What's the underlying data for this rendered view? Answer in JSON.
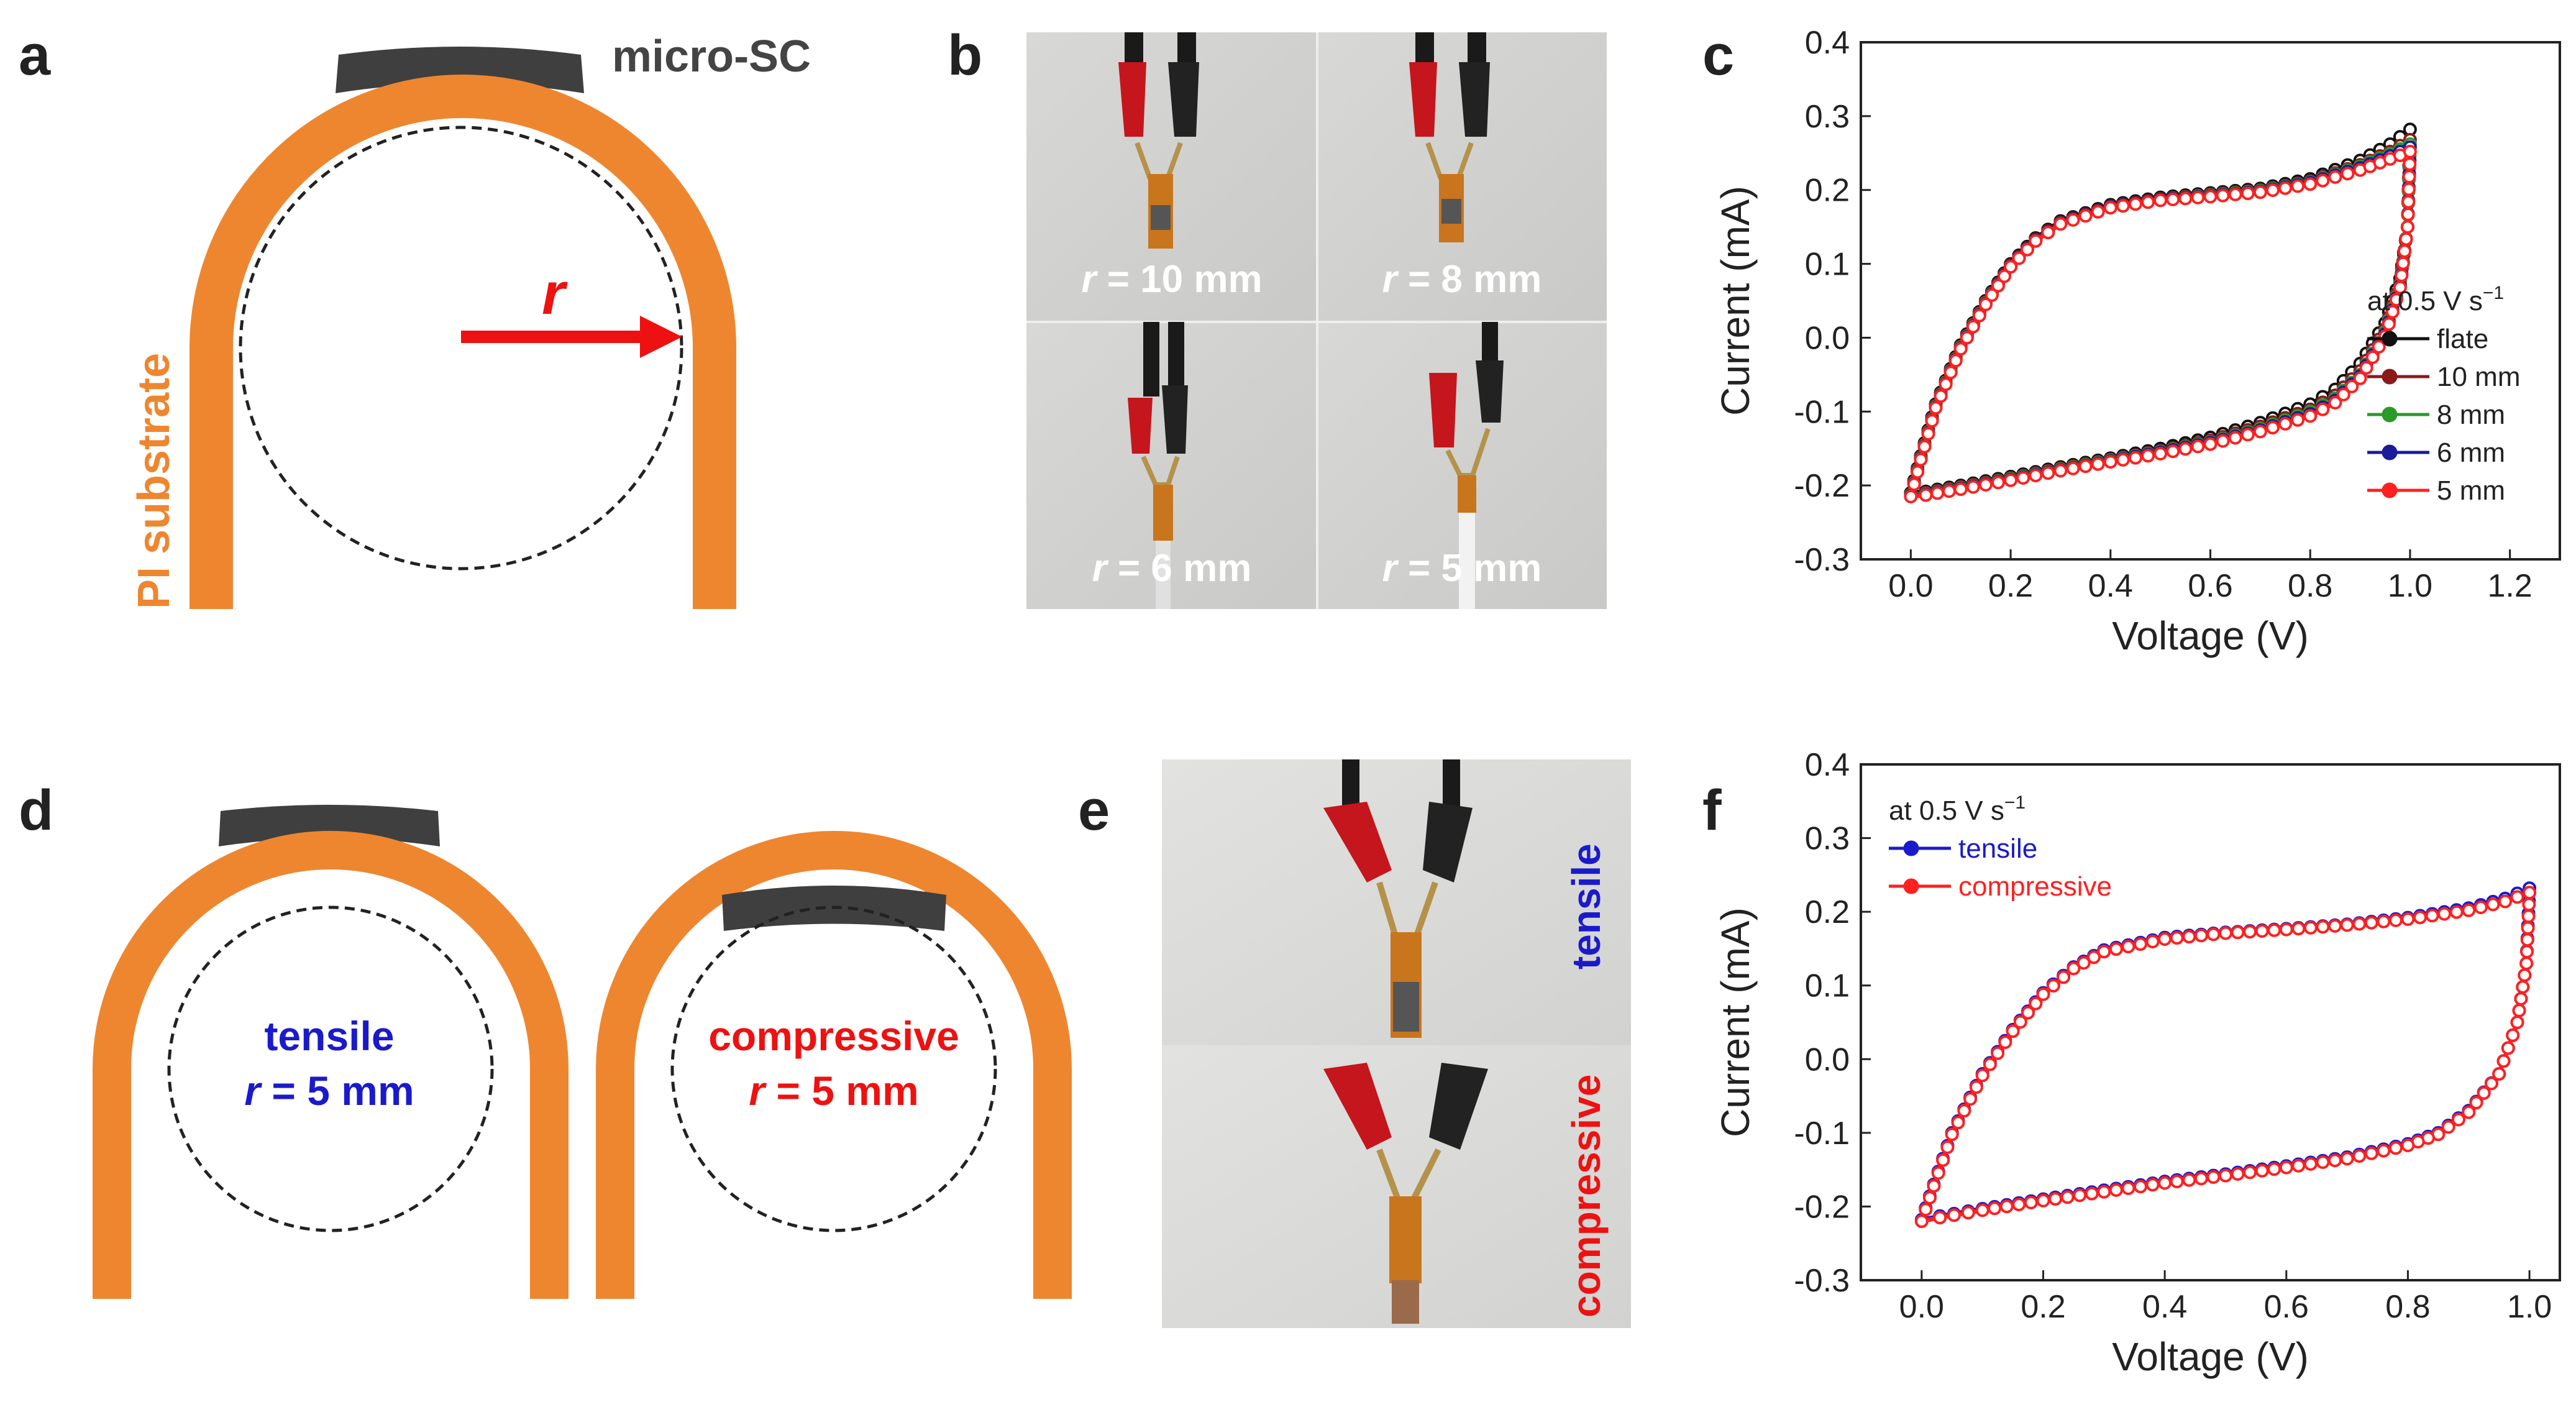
{
  "panels": {
    "a": {
      "label": "a",
      "device_label": "micro-SC",
      "substrate_label": "PI substrate",
      "radius_symbol": "r"
    },
    "b": {
      "label": "b",
      "photos": [
        {
          "prefix": "r",
          "text": " = 10 mm"
        },
        {
          "prefix": "r",
          "text": " = 8 mm"
        },
        {
          "prefix": "r",
          "text": " = 6 mm"
        },
        {
          "prefix": "r",
          "text": " = 5 mm"
        }
      ]
    },
    "c": {
      "label": "c"
    },
    "d": {
      "label": "d",
      "tensile": {
        "mode": "tensile",
        "prefix": "r",
        "text": " = 5 mm"
      },
      "compressive": {
        "mode": "compressive",
        "prefix": "r",
        "text": " = 5 mm"
      }
    },
    "e": {
      "label": "e",
      "top_text": "tensile",
      "bottom_text": "compressive"
    },
    "f": {
      "label": "f"
    }
  },
  "colors": {
    "orange": "#ee8630",
    "device": "#3f3f3f",
    "arrow": "#ee1111",
    "tensile": "#1a1acc",
    "compressive": "#ee1111",
    "flate": "#111111",
    "r10": "#8b1a1a",
    "r8": "#2a9a2a",
    "r6": "#1a1a9a",
    "r5": "#ff2020"
  },
  "chart_data": [
    {
      "id": "c",
      "type": "line",
      "title": "",
      "xlabel": "Voltage (V)",
      "ylabel": "Current (mA)",
      "xlim": [
        -0.1,
        1.3
      ],
      "ylim": [
        -0.3,
        0.4
      ],
      "xticks": [
        0.0,
        0.2,
        0.4,
        0.6,
        0.8,
        1.0,
        1.2
      ],
      "yticks": [
        -0.3,
        -0.2,
        -0.1,
        0.0,
        0.1,
        0.2,
        0.3,
        0.4
      ],
      "xtick_labels": [
        "0.0",
        "0.2",
        "0.4",
        "0.6",
        "0.8",
        "1.0",
        "1.2"
      ],
      "ytick_labels": [
        "-0.3",
        "-0.2",
        "-0.1",
        "0.0",
        "0.1",
        "0.2",
        "0.3",
        "0.4"
      ],
      "legend_title": "at 0.5 V s",
      "legend_title_sup": "−1",
      "legend_position": "right",
      "series": [
        {
          "name": "flate",
          "color": "#111111",
          "upper": [
            [
              0,
              -0.21
            ],
            [
              0.02,
              -0.16
            ],
            [
              0.05,
              -0.09
            ],
            [
              0.1,
              -0.01
            ],
            [
              0.15,
              0.05
            ],
            [
              0.2,
              0.1
            ],
            [
              0.25,
              0.135
            ],
            [
              0.3,
              0.158
            ],
            [
              0.4,
              0.18
            ],
            [
              0.5,
              0.19
            ],
            [
              0.6,
              0.196
            ],
            [
              0.7,
              0.202
            ],
            [
              0.8,
              0.215
            ],
            [
              0.9,
              0.24
            ],
            [
              0.96,
              0.262
            ],
            [
              1.0,
              0.282
            ]
          ],
          "lower": [
            [
              1.0,
              0.282
            ],
            [
              0.995,
              0.15
            ],
            [
              0.98,
              0.08
            ],
            [
              0.95,
              0.02
            ],
            [
              0.9,
              -0.035
            ],
            [
              0.85,
              -0.07
            ],
            [
              0.8,
              -0.09
            ],
            [
              0.7,
              -0.115
            ],
            [
              0.6,
              -0.135
            ],
            [
              0.5,
              -0.15
            ],
            [
              0.4,
              -0.163
            ],
            [
              0.3,
              -0.175
            ],
            [
              0.2,
              -0.188
            ],
            [
              0.1,
              -0.2
            ],
            [
              0.03,
              -0.208
            ],
            [
              0,
              -0.21
            ]
          ]
        },
        {
          "name": "10 mm",
          "color": "#8b1a1a",
          "upper": [
            [
              0,
              -0.212
            ],
            [
              0.02,
              -0.162
            ],
            [
              0.05,
              -0.092
            ],
            [
              0.1,
              -0.012
            ],
            [
              0.15,
              0.048
            ],
            [
              0.2,
              0.098
            ],
            [
              0.25,
              0.133
            ],
            [
              0.3,
              0.156
            ],
            [
              0.4,
              0.178
            ],
            [
              0.5,
              0.188
            ],
            [
              0.6,
              0.194
            ],
            [
              0.7,
              0.2
            ],
            [
              0.8,
              0.212
            ],
            [
              0.9,
              0.234
            ],
            [
              0.96,
              0.252
            ],
            [
              1.0,
              0.268
            ]
          ],
          "lower": [
            [
              1.0,
              0.268
            ],
            [
              0.995,
              0.15
            ],
            [
              0.98,
              0.075
            ],
            [
              0.95,
              0.012
            ],
            [
              0.9,
              -0.045
            ],
            [
              0.85,
              -0.078
            ],
            [
              0.8,
              -0.097
            ],
            [
              0.7,
              -0.12
            ],
            [
              0.6,
              -0.139
            ],
            [
              0.5,
              -0.153
            ],
            [
              0.4,
              -0.165
            ],
            [
              0.3,
              -0.177
            ],
            [
              0.2,
              -0.19
            ],
            [
              0.1,
              -0.202
            ],
            [
              0.03,
              -0.21
            ],
            [
              0,
              -0.212
            ]
          ]
        },
        {
          "name": "8 mm",
          "color": "#2a9a2a",
          "upper": [
            [
              0,
              -0.213
            ],
            [
              0.02,
              -0.163
            ],
            [
              0.05,
              -0.093
            ],
            [
              0.1,
              -0.013
            ],
            [
              0.15,
              0.047
            ],
            [
              0.2,
              0.097
            ],
            [
              0.25,
              0.132
            ],
            [
              0.3,
              0.155
            ],
            [
              0.4,
              0.177
            ],
            [
              0.5,
              0.187
            ],
            [
              0.6,
              0.193
            ],
            [
              0.7,
              0.199
            ],
            [
              0.8,
              0.211
            ],
            [
              0.9,
              0.232
            ],
            [
              0.96,
              0.249
            ],
            [
              1.0,
              0.262
            ]
          ],
          "lower": [
            [
              1.0,
              0.262
            ],
            [
              0.995,
              0.15
            ],
            [
              0.98,
              0.072
            ],
            [
              0.95,
              0.008
            ],
            [
              0.9,
              -0.05
            ],
            [
              0.85,
              -0.082
            ],
            [
              0.8,
              -0.1
            ],
            [
              0.7,
              -0.123
            ],
            [
              0.6,
              -0.141
            ],
            [
              0.5,
              -0.154
            ],
            [
              0.4,
              -0.166
            ],
            [
              0.3,
              -0.178
            ],
            [
              0.2,
              -0.191
            ],
            [
              0.1,
              -0.203
            ],
            [
              0.03,
              -0.211
            ],
            [
              0,
              -0.213
            ]
          ]
        },
        {
          "name": "6 mm",
          "color": "#1a1a9a",
          "upper": [
            [
              0,
              -0.214
            ],
            [
              0.02,
              -0.164
            ],
            [
              0.05,
              -0.094
            ],
            [
              0.1,
              -0.014
            ],
            [
              0.15,
              0.046
            ],
            [
              0.2,
              0.097
            ],
            [
              0.25,
              0.132
            ],
            [
              0.3,
              0.155
            ],
            [
              0.4,
              0.177
            ],
            [
              0.5,
              0.187
            ],
            [
              0.6,
              0.192
            ],
            [
              0.7,
              0.198
            ],
            [
              0.8,
              0.21
            ],
            [
              0.9,
              0.23
            ],
            [
              0.96,
              0.246
            ],
            [
              1.0,
              0.258
            ]
          ],
          "lower": [
            [
              1.0,
              0.258
            ],
            [
              0.995,
              0.15
            ],
            [
              0.98,
              0.07
            ],
            [
              0.95,
              0.005
            ],
            [
              0.9,
              -0.052
            ],
            [
              0.85,
              -0.085
            ],
            [
              0.8,
              -0.103
            ],
            [
              0.7,
              -0.125
            ],
            [
              0.6,
              -0.142
            ],
            [
              0.5,
              -0.155
            ],
            [
              0.4,
              -0.167
            ],
            [
              0.3,
              -0.179
            ],
            [
              0.2,
              -0.192
            ],
            [
              0.1,
              -0.204
            ],
            [
              0.03,
              -0.212
            ],
            [
              0,
              -0.214
            ]
          ]
        },
        {
          "name": "5 mm",
          "color": "#ff2020",
          "upper": [
            [
              0,
              -0.215
            ],
            [
              0.02,
              -0.165
            ],
            [
              0.05,
              -0.095
            ],
            [
              0.1,
              -0.015
            ],
            [
              0.15,
              0.045
            ],
            [
              0.2,
              0.096
            ],
            [
              0.25,
              0.131
            ],
            [
              0.3,
              0.154
            ],
            [
              0.4,
              0.176
            ],
            [
              0.5,
              0.186
            ],
            [
              0.6,
              0.191
            ],
            [
              0.7,
              0.197
            ],
            [
              0.8,
              0.208
            ],
            [
              0.9,
              0.227
            ],
            [
              0.96,
              0.242
            ],
            [
              1.0,
              0.252
            ]
          ],
          "lower": [
            [
              1.0,
              0.252
            ],
            [
              0.995,
              0.15
            ],
            [
              0.98,
              0.068
            ],
            [
              0.95,
              0.002
            ],
            [
              0.9,
              -0.055
            ],
            [
              0.85,
              -0.088
            ],
            [
              0.8,
              -0.106
            ],
            [
              0.7,
              -0.127
            ],
            [
              0.6,
              -0.144
            ],
            [
              0.5,
              -0.157
            ],
            [
              0.4,
              -0.168
            ],
            [
              0.3,
              -0.18
            ],
            [
              0.2,
              -0.193
            ],
            [
              0.1,
              -0.205
            ],
            [
              0.03,
              -0.213
            ],
            [
              0,
              -0.215
            ]
          ]
        }
      ]
    },
    {
      "id": "f",
      "type": "line",
      "title": "",
      "xlabel": "Voltage (V)",
      "ylabel": "Current (mA)",
      "xlim": [
        -0.1,
        1.05
      ],
      "ylim": [
        -0.3,
        0.4
      ],
      "xticks": [
        0.0,
        0.2,
        0.4,
        0.6,
        0.8,
        1.0
      ],
      "yticks": [
        -0.3,
        -0.2,
        -0.1,
        0.0,
        0.1,
        0.2,
        0.3,
        0.4
      ],
      "xtick_labels": [
        "0.0",
        "0.2",
        "0.4",
        "0.6",
        "0.8",
        "1.0"
      ],
      "ytick_labels": [
        "-0.3",
        "-0.2",
        "-0.1",
        "0.0",
        "0.1",
        "0.2",
        "0.3",
        "0.4"
      ],
      "legend_title": "at 0.5 V s",
      "legend_title_sup": "−1",
      "legend_position": "top-left",
      "series": [
        {
          "name": "tensile",
          "color": "#1a1acc",
          "upper": [
            [
              0,
              -0.218
            ],
            [
              0.02,
              -0.17
            ],
            [
              0.05,
              -0.1
            ],
            [
              0.1,
              -0.02
            ],
            [
              0.15,
              0.04
            ],
            [
              0.2,
              0.09
            ],
            [
              0.25,
              0.125
            ],
            [
              0.3,
              0.148
            ],
            [
              0.4,
              0.165
            ],
            [
              0.5,
              0.172
            ],
            [
              0.6,
              0.177
            ],
            [
              0.7,
              0.183
            ],
            [
              0.8,
              0.192
            ],
            [
              0.9,
              0.205
            ],
            [
              0.96,
              0.218
            ],
            [
              1.0,
              0.232
            ]
          ],
          "lower": [
            [
              1.0,
              0.232
            ],
            [
              0.995,
              0.13
            ],
            [
              0.98,
              0.05
            ],
            [
              0.95,
              -0.02
            ],
            [
              0.9,
              -0.07
            ],
            [
              0.85,
              -0.1
            ],
            [
              0.8,
              -0.115
            ],
            [
              0.7,
              -0.133
            ],
            [
              0.6,
              -0.145
            ],
            [
              0.5,
              -0.156
            ],
            [
              0.4,
              -0.166
            ],
            [
              0.3,
              -0.178
            ],
            [
              0.2,
              -0.19
            ],
            [
              0.1,
              -0.203
            ],
            [
              0.03,
              -0.213
            ],
            [
              0,
              -0.218
            ]
          ]
        },
        {
          "name": "compressive",
          "color": "#ff2020",
          "upper": [
            [
              0,
              -0.22
            ],
            [
              0.02,
              -0.172
            ],
            [
              0.05,
              -0.102
            ],
            [
              0.1,
              -0.022
            ],
            [
              0.15,
              0.038
            ],
            [
              0.2,
              0.088
            ],
            [
              0.25,
              0.123
            ],
            [
              0.3,
              0.146
            ],
            [
              0.4,
              0.163
            ],
            [
              0.5,
              0.171
            ],
            [
              0.6,
              0.176
            ],
            [
              0.7,
              0.182
            ],
            [
              0.8,
              0.19
            ],
            [
              0.9,
              0.202
            ],
            [
              0.96,
              0.214
            ],
            [
              1.0,
              0.226
            ]
          ],
          "lower": [
            [
              1.0,
              0.226
            ],
            [
              0.995,
              0.13
            ],
            [
              0.98,
              0.05
            ],
            [
              0.95,
              -0.02
            ],
            [
              0.9,
              -0.072
            ],
            [
              0.85,
              -0.102
            ],
            [
              0.8,
              -0.117
            ],
            [
              0.7,
              -0.135
            ],
            [
              0.6,
              -0.147
            ],
            [
              0.5,
              -0.158
            ],
            [
              0.4,
              -0.168
            ],
            [
              0.3,
              -0.18
            ],
            [
              0.2,
              -0.192
            ],
            [
              0.1,
              -0.205
            ],
            [
              0.03,
              -0.215
            ],
            [
              0,
              -0.22
            ]
          ]
        }
      ]
    }
  ]
}
